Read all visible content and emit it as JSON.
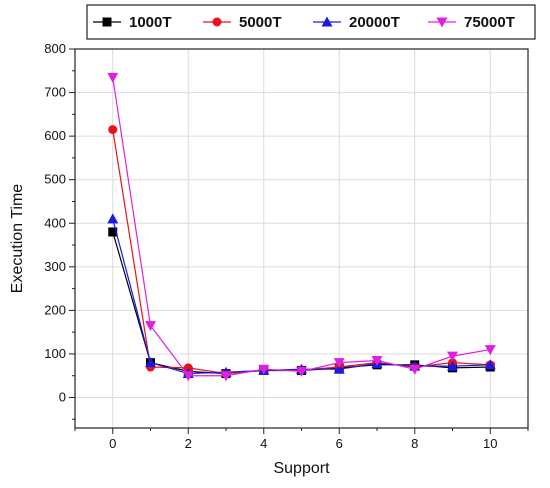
{
  "chart_data": {
    "type": "line",
    "title": "",
    "xlabel": "Support",
    "ylabel": "Execution Time",
    "xlim": [
      -1,
      11
    ],
    "ylim": [
      -70,
      800
    ],
    "xticks": [
      0,
      2,
      4,
      6,
      8,
      10
    ],
    "yticks": [
      0,
      100,
      200,
      300,
      400,
      500,
      600,
      700,
      800
    ],
    "grid": true,
    "legend": "top",
    "x": [
      0,
      1,
      2,
      3,
      4,
      5,
      6,
      7,
      8,
      9,
      10
    ],
    "series": [
      {
        "name": "1000T",
        "color": "#000000",
        "marker": "square",
        "values": [
          380,
          80,
          60,
          55,
          62,
          62,
          68,
          75,
          75,
          68,
          70
        ]
      },
      {
        "name": "5000T",
        "color": "#e8141b",
        "marker": "circle",
        "values": [
          615,
          70,
          68,
          55,
          63,
          63,
          70,
          80,
          70,
          80,
          75
        ]
      },
      {
        "name": "20000T",
        "color": "#1a1ae0",
        "marker": "triangle-up",
        "values": [
          410,
          80,
          55,
          58,
          62,
          65,
          65,
          78,
          72,
          72,
          75
        ]
      },
      {
        "name": "75000T",
        "color": "#e020e0",
        "marker": "triangle-down",
        "values": [
          735,
          165,
          50,
          50,
          65,
          60,
          80,
          85,
          65,
          95,
          110
        ]
      }
    ]
  }
}
